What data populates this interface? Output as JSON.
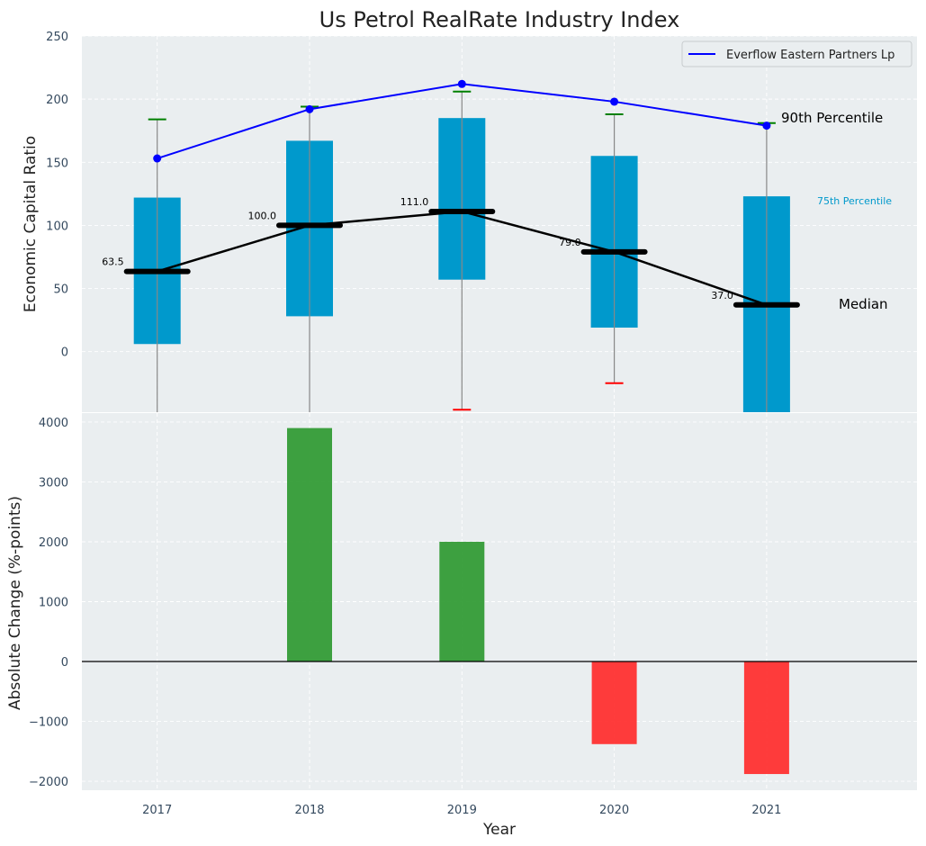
{
  "chart_data": {
    "title": "Us Petrol RealRate Industry Index",
    "xlabel": "Year",
    "categories": [
      "2017",
      "2018",
      "2019",
      "2020",
      "2021"
    ],
    "colors": {
      "panel_bg": "#eaeef0",
      "box": "#0099cc",
      "whisker": "#888888",
      "median": "#000000",
      "company_line": "#0000ff",
      "cap_top": "#008000",
      "cap_bottom": "#ff0000",
      "bar_positive": "#2e9931",
      "bar_negative": "#ff2b2b"
    },
    "top": {
      "type": "box",
      "ylabel": "Economic Capital Ratio",
      "ylim": [
        -48,
        250
      ],
      "yticks": [
        0,
        50,
        100,
        150,
        200,
        250
      ],
      "q1": [
        6,
        28,
        57,
        19,
        -50
      ],
      "q3": [
        122,
        167,
        185,
        155,
        123
      ],
      "median": [
        63.5,
        100.0,
        111.0,
        79.0,
        37.0
      ],
      "median_labels": [
        "63.5",
        "100.0",
        "111.0",
        "79.0",
        "37.0"
      ],
      "whisker_top": [
        184,
        194,
        206,
        188,
        181
      ],
      "whisker_bottom": [
        null,
        null,
        -46,
        -25,
        null
      ],
      "company_series": {
        "name": "Everflow Eastern Partners Lp",
        "values": [
          153,
          192,
          212,
          198,
          179
        ]
      },
      "annotations": {
        "p90": "90th Percentile",
        "p75": "75th Percentile",
        "median": "Median"
      },
      "legend_position": "top-right"
    },
    "bottom": {
      "type": "bar",
      "ylabel": "Absolute Change (%-points)",
      "ylim": [
        -2150,
        4150
      ],
      "yticks": [
        -2000,
        -1000,
        0,
        1000,
        2000,
        3000,
        4000
      ],
      "ytick_labels": [
        "−2000",
        "−1000",
        "0",
        "1000",
        "2000",
        "3000",
        "4000"
      ],
      "values": [
        0,
        3900,
        2000,
        -1380,
        -1880
      ]
    }
  }
}
